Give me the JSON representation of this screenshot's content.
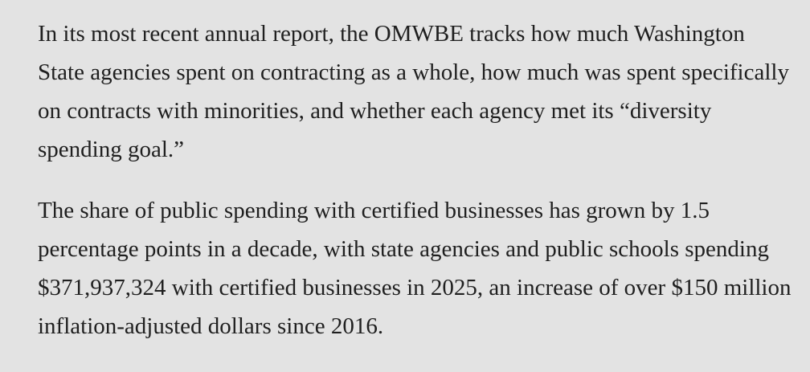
{
  "paragraphs": [
    "In its most recent annual report, the OMWBE tracks how much Washington State agencies spent on contracting as a whole, how much was spent specifically on contracts with minorities, and whether each agency met its “diversity spending goal.”",
    "The share of public spending with certified businesses has grown by 1.5 percentage points in a decade, with state agencies and public schools spending $371,937,324 with certified businesses in 2025, an increase of over $150 million inflation-adjusted dollars since 2016."
  ]
}
